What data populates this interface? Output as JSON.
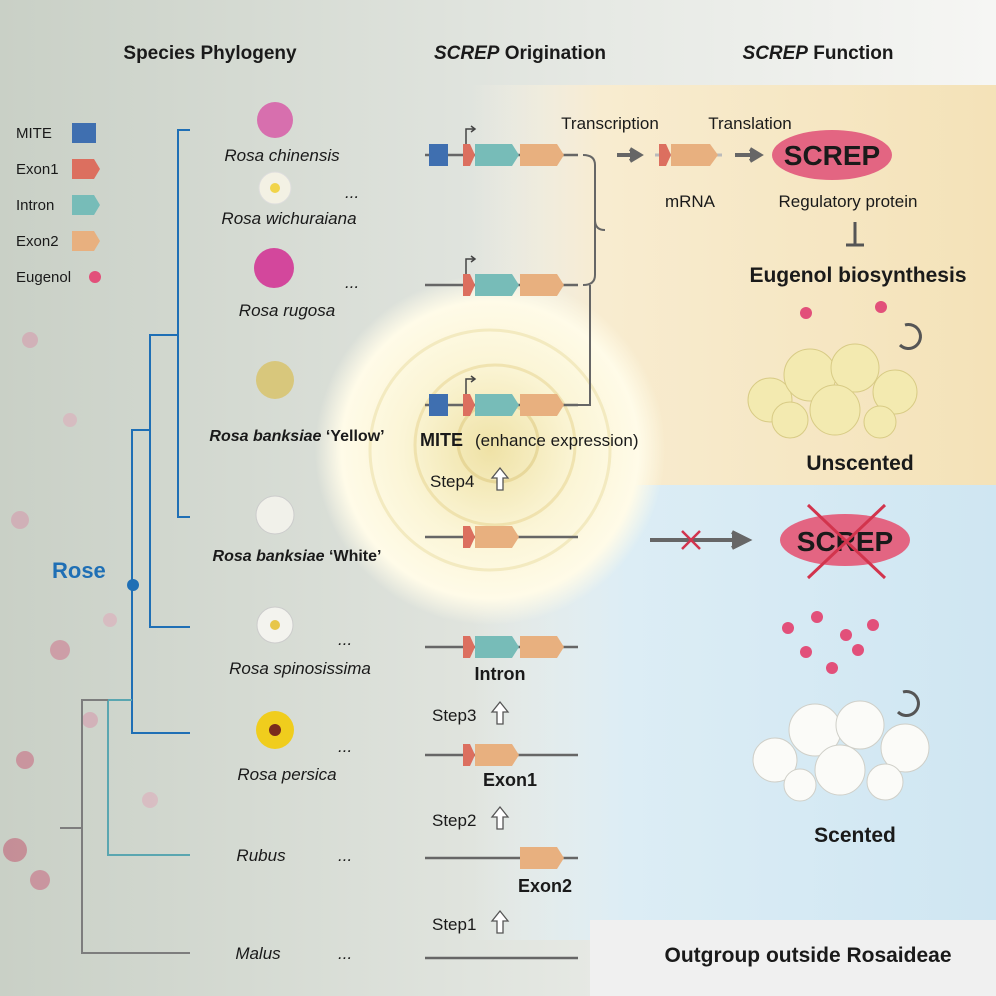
{
  "headers": {
    "phylogeny": "Species Phylogeny",
    "origination_italic": "SCREP",
    "origination_rest": " Origination",
    "function_italic": "SCREP",
    "function_rest": " Function"
  },
  "legend": [
    {
      "label": "MITE",
      "color": "#3f6fb0",
      "shape": "square"
    },
    {
      "label": "Exon1",
      "color": "#dc6f5f",
      "shape": "arrow"
    },
    {
      "label": "Intron",
      "color": "#77bcb8",
      "shape": "arrow"
    },
    {
      "label": "Exon2",
      "color": "#e8b07f",
      "shape": "arrow"
    },
    {
      "label": "Eugenol",
      "color": "#e2507a",
      "shape": "dot"
    }
  ],
  "tree": {
    "clade_label": "Rose",
    "clade_color": "#1f6fb5",
    "outgroup_color": "#7d7d7d",
    "rubus_color": "#5aa6b0"
  },
  "species": [
    {
      "name": "Rosa chinensis",
      "ellipsis": ""
    },
    {
      "name": "Rosa wichuraiana",
      "ellipsis": "..."
    },
    {
      "name": "Rosa rugosa",
      "ellipsis": "..."
    },
    {
      "name_bold_italic": "Rosa banksiae",
      "name_bold": " ‘Yellow’"
    },
    {
      "name_bold_italic": "Rosa banksiae",
      "name_bold": " ‘White’"
    },
    {
      "name": "Rosa spinosissima",
      "ellipsis": "..."
    },
    {
      "name": "Rosa persica",
      "ellipsis": "..."
    },
    {
      "name": "Rubus",
      "ellipsis": "..."
    },
    {
      "name": "Malus",
      "ellipsis": "..."
    }
  ],
  "origination": {
    "mite_label": "MITE",
    "mite_note": "(enhance expression)",
    "steps": [
      "Step4",
      "Step3",
      "Step2",
      "Step1"
    ],
    "intron_label": "Intron",
    "exon1_label": "Exon1",
    "exon2_label": "Exon2"
  },
  "function": {
    "transcription": "Transcription",
    "translation": "Translation",
    "protein": "SCREP",
    "mrna": "mRNA",
    "regulatory": "Regulatory protein",
    "eugenol_biosynthesis": "Eugenol biosynthesis",
    "unscented": "Unscented",
    "scented": "Scented",
    "outgroup": "Outgroup outside Rosaideae"
  }
}
